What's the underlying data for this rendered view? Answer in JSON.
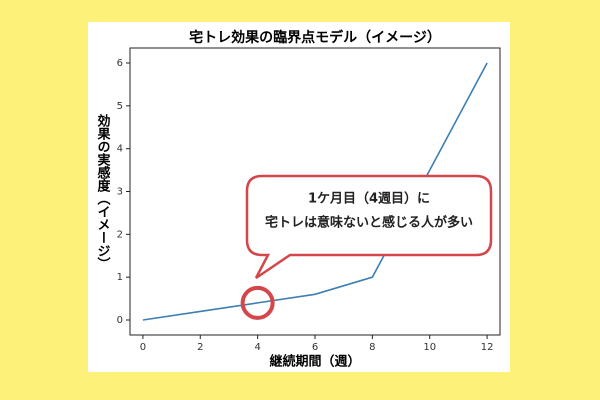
{
  "chart_data": {
    "type": "line",
    "title": "宅トレ効果の臨界点モデル（イメージ）",
    "x_label": "継続期間（週）",
    "y_label": "効果の実感度（イメージ）",
    "x": [
      0,
      2,
      4,
      6,
      8,
      10,
      12
    ],
    "series": [
      {
        "color": "#3b7fb5",
        "values": [
          0,
          0.2,
          0.4,
          0.6,
          1,
          3.5,
          6
        ]
      }
    ],
    "xlim": [
      -0.45,
      12.45
    ],
    "xticks": [
      0,
      2,
      4,
      6,
      8,
      10,
      12
    ],
    "ylim": [
      -0.35,
      6.35
    ],
    "yticks": [
      0,
      1,
      2,
      3,
      4,
      5,
      6
    ],
    "annotations": [
      {
        "lines": [
          "1ケ月目（4週目）に",
          "宅トレは意味ないと感じる人が多い"
        ],
        "x": 4,
        "y": 0.4,
        "color": "#d4464a"
      }
    ]
  }
}
